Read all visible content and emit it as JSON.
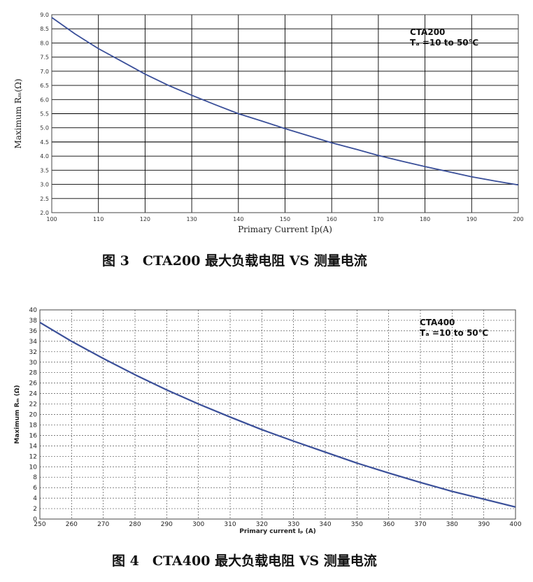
{
  "chart_data": [
    {
      "type": "line",
      "xlabel": "Primary Current Ip(A)",
      "ylabel": "Maximum Rₘ(Ω)",
      "xlim": [
        100,
        200
      ],
      "ylim": [
        2.0,
        9.0
      ],
      "xticks": [
        "100",
        "110",
        "120",
        "130",
        "140",
        "150",
        "160",
        "170",
        "180",
        "190",
        "200"
      ],
      "yticks": [
        "2.0",
        "2.5",
        "3.0",
        "3.5",
        "4.0",
        "4.5",
        "5.0",
        "5.5",
        "6.0",
        "6.5",
        "7.0",
        "7.5",
        "8.0",
        "8.5",
        "9.0"
      ],
      "grid": "major",
      "legend": {
        "line1": "CTA200",
        "line2": "Tₐ =10 to 50℃",
        "position": "top-right"
      },
      "series": [
        {
          "color": "#3a4f99",
          "x": [
            100,
            105,
            110,
            115,
            120,
            125,
            130,
            135,
            140,
            145,
            150,
            155,
            160,
            165,
            170,
            175,
            180,
            185,
            190,
            195,
            200
          ],
          "y": [
            8.9,
            8.32,
            7.8,
            7.35,
            6.9,
            6.5,
            6.15,
            5.82,
            5.5,
            5.24,
            4.97,
            4.72,
            4.47,
            4.25,
            4.02,
            3.82,
            3.63,
            3.45,
            3.27,
            3.12,
            2.98
          ]
        }
      ]
    },
    {
      "type": "line",
      "xlabel": "Primary current Iₚ (A)",
      "ylabel": "Maximum Rₘ (Ω)",
      "xlim": [
        250,
        400
      ],
      "ylim": [
        0,
        40
      ],
      "xticks": [
        "250",
        "260",
        "270",
        "280",
        "290",
        "300",
        "310",
        "320",
        "330",
        "340",
        "350",
        "360",
        "370",
        "380",
        "390",
        "400"
      ],
      "yticks": [
        "0",
        "2",
        "4",
        "6",
        "8",
        "10",
        "12",
        "14",
        "16",
        "18",
        "20",
        "22",
        "24",
        "26",
        "28",
        "30",
        "32",
        "34",
        "36",
        "38",
        "40"
      ],
      "grid": "dotted",
      "legend": {
        "line1": "CTA400",
        "line2": "Tₐ =10 to 50℃",
        "position": "top-right"
      },
      "series": [
        {
          "color": "#3a4f99",
          "x": [
            250,
            260,
            270,
            280,
            290,
            300,
            310,
            320,
            330,
            340,
            350,
            360,
            370,
            380,
            390,
            400
          ],
          "y": [
            37.6,
            34.0,
            30.7,
            27.6,
            24.7,
            22.0,
            19.5,
            17.1,
            14.9,
            12.8,
            10.7,
            8.8,
            7.0,
            5.3,
            3.8,
            2.3
          ]
        }
      ]
    }
  ],
  "captions": {
    "fig3": "图 3　CTA200 最大负载电阻 VS 测量电流",
    "fig4": "图 4　CTA400 最大负载电阻 VS 测量电流"
  }
}
